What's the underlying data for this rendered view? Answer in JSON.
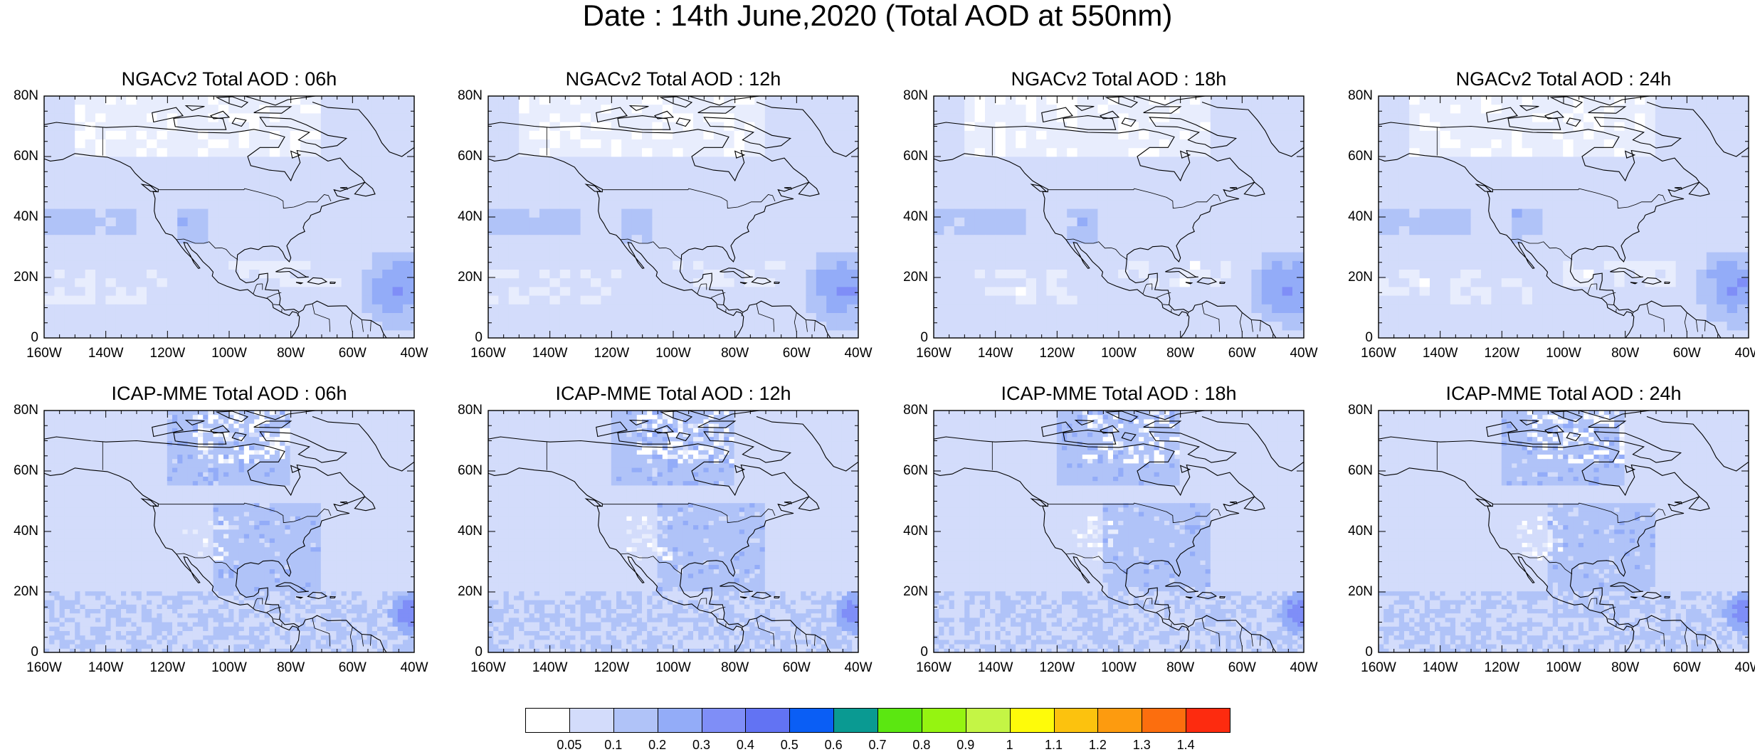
{
  "title": "Date : 14th June,2020 (Total AOD at 550nm)",
  "lat_ticks": [
    "80N",
    "60N",
    "40N",
    "20N",
    "0"
  ],
  "lon_ticks": [
    "160W",
    "140W",
    "120W",
    "100W",
    "80W",
    "60W",
    "40W"
  ],
  "panels": [
    {
      "title": "NGACv2 Total AOD : 06h",
      "model": "NGACv2",
      "hour": "06h"
    },
    {
      "title": "NGACv2 Total AOD : 12h",
      "model": "NGACv2",
      "hour": "12h"
    },
    {
      "title": "NGACv2 Total AOD : 18h",
      "model": "NGACv2",
      "hour": "18h"
    },
    {
      "title": "NGACv2 Total AOD : 24h",
      "model": "NGACv2",
      "hour": "24h"
    },
    {
      "title": "ICAP-MME Total AOD : 06h",
      "model": "ICAP-MME",
      "hour": "06h"
    },
    {
      "title": "ICAP-MME Total AOD : 12h",
      "model": "ICAP-MME",
      "hour": "12h"
    },
    {
      "title": "ICAP-MME Total AOD : 18h",
      "model": "ICAP-MME",
      "hour": "18h"
    },
    {
      "title": "ICAP-MME Total AOD : 24h",
      "model": "ICAP-MME",
      "hour": "24h"
    }
  ],
  "colorbar": {
    "labels": [
      "0.05",
      "0.1",
      "0.2",
      "0.3",
      "0.4",
      "0.5",
      "0.6",
      "0.7",
      "0.8",
      "0.9",
      "1",
      "1.1",
      "1.2",
      "1.3",
      "1.4"
    ],
    "colors": [
      "#ffffff",
      "#d3dcfb",
      "#b0c3f8",
      "#93acf8",
      "#7f8ef7",
      "#6273f3",
      "#0a5ef5",
      "#0a9a92",
      "#5be711",
      "#95f411",
      "#c4f545",
      "#fefb0a",
      "#fcc20e",
      "#fd9b0f",
      "#fc6e0e",
      "#fd2b0f"
    ]
  },
  "map_palette": {
    "ocean_low": "#d3dcfb",
    "ocean_mid": "#b0c3f8",
    "plume": "#93acf8",
    "plume_core": "#7f8ef7",
    "clean": "#ffffff",
    "coast": "#000000"
  }
}
